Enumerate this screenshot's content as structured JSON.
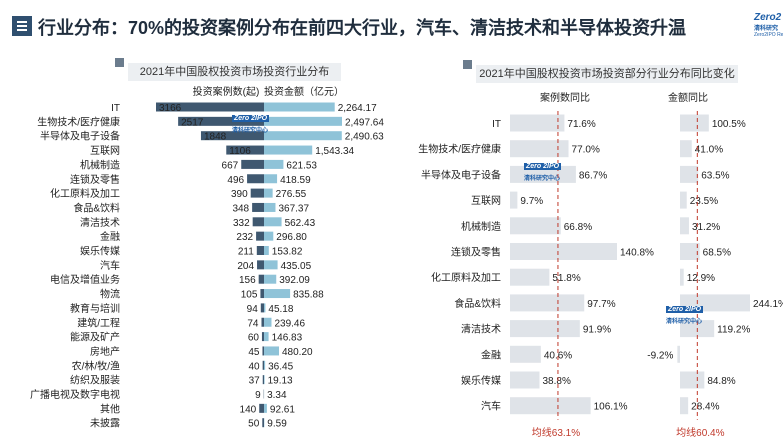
{
  "header": {
    "title": "行业分布：70%的投资案例分布在前四大行业，汽车、清洁技术和半导体投资升温",
    "logo_mark": "Zero2",
    "logo_cn": "清科研究",
    "logo_en": "Zero2IPO Re"
  },
  "watermark": {
    "mark": "Zero 2IPO",
    "cn": "清科研究中心"
  },
  "colors": {
    "cases_bar": "#3f5870",
    "amount_bar": "#8fc3d8",
    "right_bar": "#dfe3e8",
    "avg_line": "#c0392b",
    "accent": "#2f4f6f"
  },
  "chart_data": [
    {
      "type": "bar",
      "title": "2021年中国股权投资市场投资行业分布",
      "legend": "top",
      "series_headers": [
        "投资案例数(起)",
        "投资金额（亿元）"
      ],
      "categories": [
        "IT",
        "生物技术/医疗健康",
        "半导体及电子设备",
        "互联网",
        "机械制造",
        "连锁及零售",
        "化工原料及加工",
        "食品&饮料",
        "清洁技术",
        "金融",
        "娱乐传媒",
        "汽车",
        "电信及增值业务",
        "物流",
        "教育与培训",
        "建筑/工程",
        "能源及矿产",
        "房地产",
        "农/林/牧/渔",
        "纺织及服装",
        "广播电视及数字电视",
        "其他",
        "未披露"
      ],
      "series": [
        {
          "name": "投资案例数(起)",
          "values": [
            3166,
            2517,
            1848,
            1106,
            667,
            496,
            390,
            348,
            332,
            232,
            211,
            204,
            156,
            105,
            94,
            74,
            60,
            45,
            40,
            37,
            9,
            140,
            50
          ]
        },
        {
          "name": "投资金额（亿元）",
          "values": [
            2264.17,
            2497.64,
            2490.63,
            1543.34,
            621.53,
            418.59,
            276.55,
            367.37,
            562.43,
            296.8,
            153.82,
            435.05,
            392.09,
            835.88,
            45.18,
            239.46,
            146.83,
            480.2,
            36.45,
            19.13,
            3.34,
            92.61,
            9.59
          ]
        }
      ],
      "labels": {
        "cases": [
          "3166",
          "2517",
          "1848",
          "1106",
          "667",
          "496",
          "390",
          "348",
          "332",
          "232",
          "211",
          "204",
          "156",
          "105",
          "94",
          "74",
          "60",
          "45",
          "40",
          "37",
          "9",
          "140",
          "50"
        ],
        "amount": [
          "2,264.17",
          "2,497.64",
          "2,490.63",
          "1,543.34",
          "621.53",
          "418.59",
          "276.55",
          "367.37",
          "562.43",
          "296.80",
          "153.82",
          "435.05",
          "392.09",
          "835.88",
          "45.18",
          "239.46",
          "146.83",
          "480.20",
          "36.45",
          "19.13",
          "3.34",
          "92.61",
          "9.59"
        ]
      }
    },
    {
      "type": "bar",
      "title": "2021年中国股权投资市场投资部分行业分布同比变化",
      "series_headers": [
        "案例数同比",
        "金额同比"
      ],
      "categories": [
        "IT",
        "生物技术/医疗健康",
        "半导体及电子设备",
        "互联网",
        "机械制造",
        "连锁及零售",
        "化工原料及加工",
        "食品&饮料",
        "清洁技术",
        "金融",
        "娱乐传媒",
        "汽车"
      ],
      "series": [
        {
          "name": "案例数同比",
          "values": [
            71.6,
            77.0,
            86.7,
            9.7,
            66.8,
            140.8,
            51.8,
            97.7,
            91.9,
            40.6,
            38.8,
            106.1
          ]
        },
        {
          "name": "金额同比",
          "values": [
            100.5,
            41.0,
            63.5,
            23.5,
            31.2,
            68.5,
            12.9,
            244.1,
            119.2,
            -9.2,
            84.8,
            28.4
          ]
        }
      ],
      "labels": {
        "cases": [
          "71.6%",
          "77.0%",
          "86.7%",
          "9.7%",
          "66.8%",
          "140.8%",
          "51.8%",
          "97.7%",
          "91.9%",
          "40.6%",
          "38.8%",
          "106.1%"
        ],
        "amount": [
          "100.5%",
          "41.0%",
          "63.5%",
          "23.5%",
          "31.2%",
          "68.5%",
          "12.9%",
          "244.1%",
          "119.2%",
          "-9.2%",
          "84.8%",
          "28.4%"
        ]
      },
      "averages": [
        {
          "value": 63.1,
          "label": "均线63.1%"
        },
        {
          "value": 60.4,
          "label": "均线60.4%"
        }
      ]
    }
  ]
}
